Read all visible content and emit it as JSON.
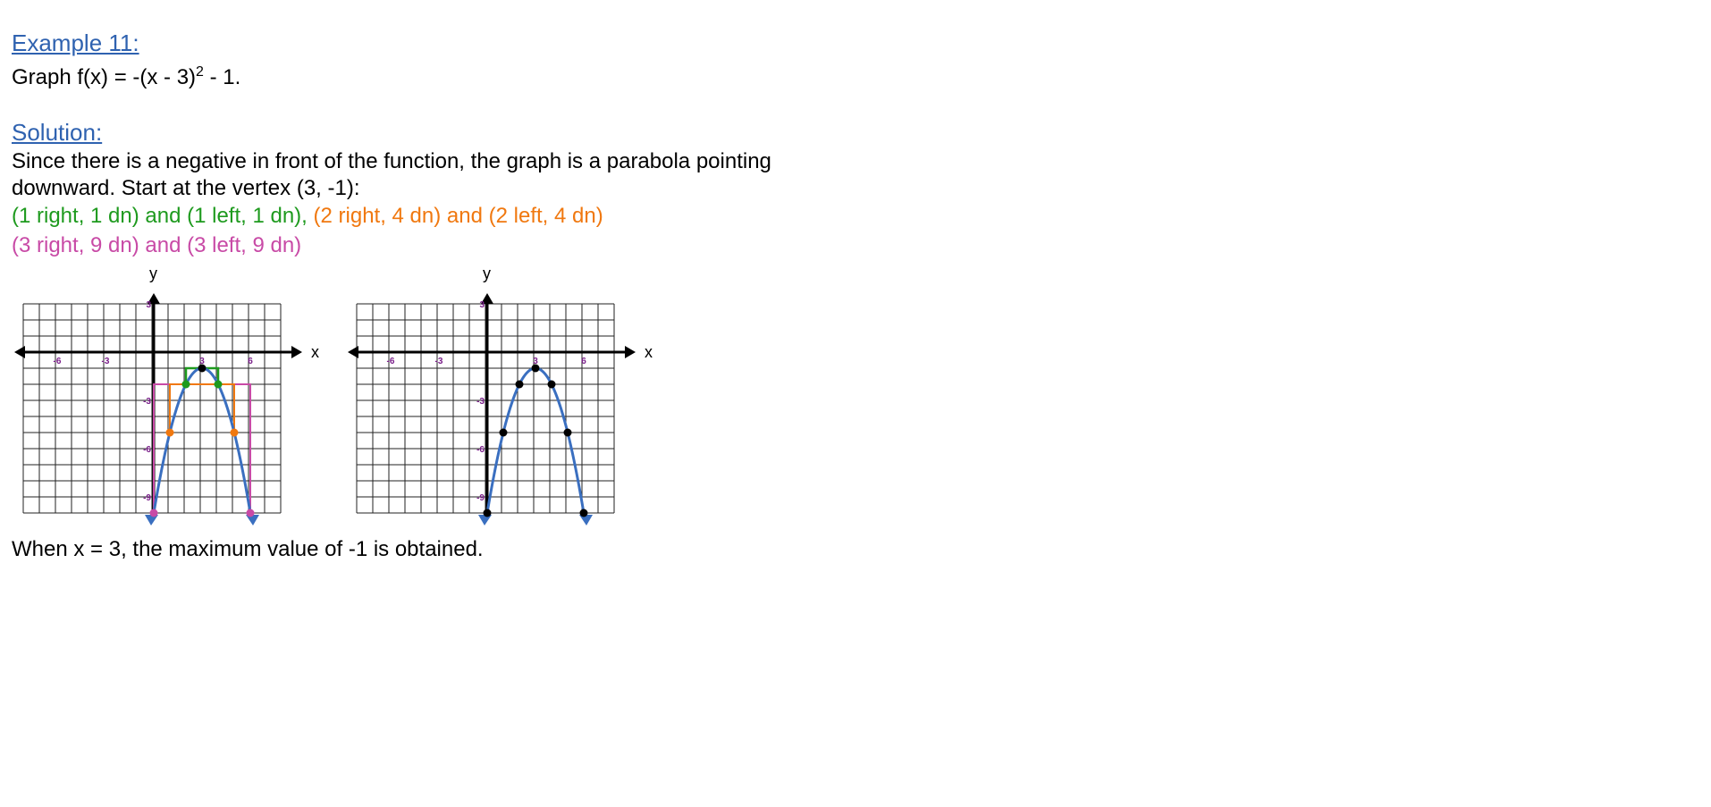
{
  "example_heading": "Example 11:",
  "problem": {
    "prefix": "Graph  f(x) = -(x - 3)",
    "exponent": "2",
    "suffix": " - 1."
  },
  "solution_heading": "Solution:",
  "solution_text": {
    "line1": "Since there is a negative in front of the function, the graph is a parabola pointing",
    "line2": "downward.  Start at the vertex (3, -1):"
  },
  "steps": {
    "green": "(1 right, 1 dn)  and (1 left, 1 dn),",
    "orange": " (2 right, 4 dn)  and (2 left, 4 dn)",
    "magenta": "(3 right, 9 dn) and (3 left, 9 dn)"
  },
  "graph_labels": {
    "x_axis": "x",
    "y_axis": "y",
    "x_ticks": [
      "-6",
      "-3",
      "3",
      "6"
    ],
    "y_ticks": [
      "3",
      "-3",
      "-6",
      "-9"
    ]
  },
  "colors": {
    "curve": "#3a6fc0",
    "green": "#1e9a1e",
    "orange": "#f0780f",
    "magenta": "#c84aa6",
    "heading": "#2f62b0"
  },
  "chart_data": [
    {
      "type": "line",
      "title": "",
      "xlabel": "x",
      "ylabel": "y",
      "xlim": [
        -8,
        8
      ],
      "ylim": [
        -10,
        3
      ],
      "grid": true,
      "x_ticks": [
        -6,
        -3,
        3,
        6
      ],
      "y_ticks": [
        3,
        -3,
        -6,
        -9
      ],
      "series": [
        {
          "curve": "f(x) = -(x - 3)^2 - 1",
          "x": [
            0,
            1,
            2,
            3,
            4,
            5,
            6
          ],
          "y": [
            -10,
            -5,
            -2,
            -1,
            -2,
            -5,
            -10
          ]
        }
      ],
      "points": [
        {
          "x": 3,
          "y": -1,
          "color": "#000000"
        },
        {
          "x": 2,
          "y": -2,
          "color": "#1e9a1e"
        },
        {
          "x": 4,
          "y": -2,
          "color": "#1e9a1e"
        },
        {
          "x": 1,
          "y": -5,
          "color": "#f0780f"
        },
        {
          "x": 5,
          "y": -5,
          "color": "#f0780f"
        },
        {
          "x": 0,
          "y": -10,
          "color": "#c84aa6"
        },
        {
          "x": 6,
          "y": -10,
          "color": "#c84aa6"
        }
      ],
      "step_guides": true
    },
    {
      "type": "line",
      "title": "",
      "xlabel": "x",
      "ylabel": "y",
      "xlim": [
        -8,
        8
      ],
      "ylim": [
        -10,
        3
      ],
      "grid": true,
      "x_ticks": [
        -6,
        -3,
        3,
        6
      ],
      "y_ticks": [
        3,
        -3,
        -6,
        -9
      ],
      "series": [
        {
          "curve": "f(x) = -(x - 3)^2 - 1",
          "x": [
            0,
            1,
            2,
            3,
            4,
            5,
            6
          ],
          "y": [
            -10,
            -5,
            -2,
            -1,
            -2,
            -5,
            -10
          ]
        }
      ],
      "points": [
        {
          "x": 3,
          "y": -1,
          "color": "#000000"
        },
        {
          "x": 2,
          "y": -2,
          "color": "#000000"
        },
        {
          "x": 4,
          "y": -2,
          "color": "#000000"
        },
        {
          "x": 1,
          "y": -5,
          "color": "#000000"
        },
        {
          "x": 5,
          "y": -5,
          "color": "#000000"
        },
        {
          "x": 0,
          "y": -10,
          "color": "#000000"
        },
        {
          "x": 6,
          "y": -10,
          "color": "#000000"
        }
      ],
      "step_guides": false
    }
  ],
  "conclusion": "When x = 3, the maximum value of -1 is obtained."
}
